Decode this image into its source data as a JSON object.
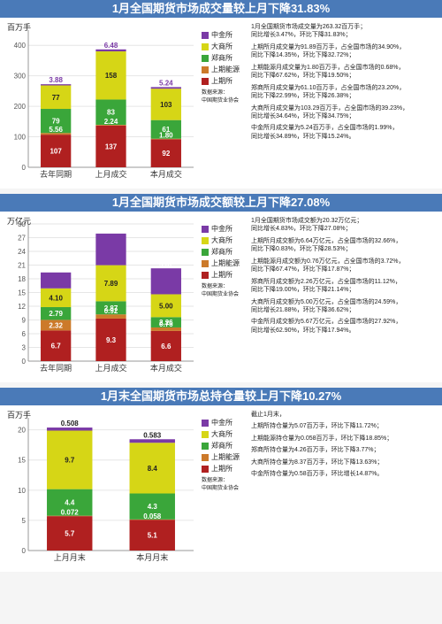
{
  "colors": {
    "shq": "#b02020",
    "snyq": "#cc7a2a",
    "zss": "#3aa63a",
    "dss": "#d6d616",
    "zjs": "#7a3aa6",
    "grid": "#e6e6e6",
    "axis": "#999999",
    "title_bg": "#4a7ab8"
  },
  "legend_labels": {
    "zjs": "中金所",
    "dss": "大商所",
    "zss": "郑商所",
    "snyq": "上期能源",
    "shq": "上期所"
  },
  "source_label": "数据来源：\n中国期货业协会",
  "panel1": {
    "title": "1月全国期货市场成交量较上月下降31.83%",
    "y_unit": "百万手",
    "ymax": 450,
    "ytick": 100,
    "categories": [
      "去年同期",
      "上月成交",
      "本月成交"
    ],
    "bars": [
      {
        "shq": 107,
        "snyq": 5.56,
        "zss": 79,
        "dss": 77,
        "zjs": 3.88,
        "show_top": "3.88",
        "show_top_color": "#7a3aa6"
      },
      {
        "shq": 137,
        "snyq": 2.24,
        "zss": 83,
        "dss": 158,
        "zjs": 6.48,
        "show_top": "6.48",
        "show_top_color": "#7a3aa6"
      },
      {
        "shq": 92,
        "snyq": 1.8,
        "zss": 61,
        "dss": 103,
        "zjs": 5.24,
        "show_top": "5.24",
        "show_top_color": "#7a3aa6"
      }
    ],
    "bar_labels": [
      [
        {
          "t": "3.88",
          "c": "#7a3aa6"
        },
        {
          "t": "77",
          "c": "#222"
        },
        {
          "t": "79",
          "c": "#fff"
        },
        {
          "t": "5.56",
          "c": "#fff"
        },
        {
          "t": "107",
          "c": "#fff"
        }
      ],
      [
        {
          "t": "6.48",
          "c": "#7a3aa6"
        },
        {
          "t": "158",
          "c": "#222"
        },
        {
          "t": "83",
          "c": "#fff"
        },
        {
          "t": "2.24",
          "c": "#fff"
        },
        {
          "t": "137",
          "c": "#fff"
        }
      ],
      [
        {
          "t": "5.24",
          "c": "#7a3aa6"
        },
        {
          "t": "103",
          "c": "#222"
        },
        {
          "t": "61",
          "c": "#fff"
        },
        {
          "t": "1.80",
          "c": "#fff"
        },
        {
          "t": "92",
          "c": "#fff"
        }
      ]
    ],
    "notes": [
      "1月全国期货市场成交量为263.32百万手；\n同比增长3.47%，环比下降31.83%；",
      "上期所月成交量为91.89百万手，占全国市场的34.90%，\n同比下降14.35%，环比下降32.72%；",
      "上期能源月成交量为1.80百万手，占全国市场的0.68%，\n同比下降67.62%，环比下降19.50%；",
      "郑商所月成交量为61.10百万手，占全国市场的23.20%，\n同比下降22.99%，环比下降26.38%；",
      "大商所月成交量为103.29百万手，占全国市场的39.23%，\n同比增长34.64%，环比下降34.75%；",
      "中金所月成交量为5.24百万手，占全国市场的1.99%，\n同比增长34.89%，环比下降15.24%。"
    ]
  },
  "panel2": {
    "title": "1月全国期货市场成交额较上月下降27.08%",
    "y_unit": "万亿元",
    "ymax": 30,
    "ytick": 3,
    "categories": [
      "去年同期",
      "上月成交",
      "本月成交"
    ],
    "bars": [
      {
        "shq": 6.7,
        "snyq": 2.32,
        "zss": 2.79,
        "dss": 4.1,
        "zjs": 3.48
      },
      {
        "shq": 9.3,
        "snyq": 0.92,
        "zss": 2.87,
        "dss": 7.89,
        "zjs": 6.91
      },
      {
        "shq": 6.6,
        "snyq": 0.76,
        "zss": 2.26,
        "dss": 5.0,
        "zjs": 5.67
      }
    ],
    "bar_labels": [
      [
        {
          "t": "3.48",
          "c": "#fff"
        },
        {
          "t": "4.10",
          "c": "#222"
        },
        {
          "t": "2.79",
          "c": "#fff"
        },
        {
          "t": "2.32",
          "c": "#fff"
        },
        {
          "t": "6.7",
          "c": "#fff"
        }
      ],
      [
        {
          "t": "6.91",
          "c": "#fff"
        },
        {
          "t": "7.89",
          "c": "#222"
        },
        {
          "t": "2.87",
          "c": "#fff"
        },
        {
          "t": "0.92",
          "c": "#fff"
        },
        {
          "t": "9.3",
          "c": "#fff"
        }
      ],
      [
        {
          "t": "5.67",
          "c": "#fff"
        },
        {
          "t": "5.00",
          "c": "#222"
        },
        {
          "t": "2.26",
          "c": "#fff"
        },
        {
          "t": "0.76",
          "c": "#fff"
        },
        {
          "t": "6.6",
          "c": "#fff"
        }
      ]
    ],
    "notes": [
      "1月全国期货市场成交额为20.32万亿元；\n同比增长4.83%，环比下降27.08%；",
      "上期所月成交额为6.64万亿元，占全国市场的32.66%，\n同比下降0.83%，环比下降28.53%；",
      "上期能源月成交额为0.76万亿元，占全国市场的3.72%，\n同比下降67.47%，环比下降17.87%；",
      "郑商所月成交额为2.26万亿元，占全国市场的11.12%，\n同比下降19.00%，环比下降21.14%；",
      "大商所月成交额为5.00万亿元，占全国市场的24.59%，\n同比增长21.88%，环比下降36.62%；",
      "中金所月成交额为5.67万亿元，占全国市场的27.92%，\n同比增长62.90%，环比下降17.94%。"
    ]
  },
  "panel3": {
    "title": "1月末全国期货市场总持仓量较上月下降10.27%",
    "y_unit": "百万手",
    "ymax": 22,
    "ytick": 5,
    "categories": [
      "上月月末",
      "本月月末"
    ],
    "bars": [
      {
        "shq": 5.7,
        "snyq": 0.072,
        "zss": 4.4,
        "dss": 9.7,
        "zjs": 0.508
      },
      {
        "shq": 5.1,
        "snyq": 0.058,
        "zss": 4.3,
        "dss": 8.4,
        "zjs": 0.583
      }
    ],
    "bar_labels": [
      [
        {
          "t": "0.508",
          "c": "#222"
        },
        {
          "t": "9.7",
          "c": "#222"
        },
        {
          "t": "4.4",
          "c": "#fff"
        },
        {
          "t": "0.072",
          "c": "#fff"
        },
        {
          "t": "5.7",
          "c": "#fff"
        }
      ],
      [
        {
          "t": "0.583",
          "c": "#222"
        },
        {
          "t": "8.4",
          "c": "#222"
        },
        {
          "t": "4.3",
          "c": "#fff"
        },
        {
          "t": "0.058",
          "c": "#fff"
        },
        {
          "t": "5.1",
          "c": "#fff"
        }
      ]
    ],
    "notes": [
      "截止1月末，",
      "上期所持仓量为5.07百万手，环比下降11.72%；",
      "上期能源持仓量为0.058百万手，环比下降18.85%；",
      "郑商所持仓量为4.26百万手，环比下降3.77%；",
      "大商所持仓量为8.37百万手，环比下降13.63%；",
      "中金所持仓量为0.58百万手，环比增长14.87%。"
    ]
  }
}
